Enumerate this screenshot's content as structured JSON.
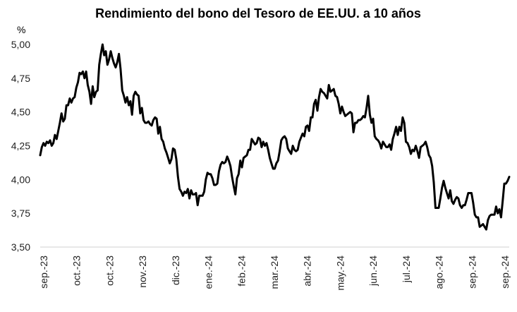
{
  "chart_data": {
    "type": "line",
    "title": "Rendimiento del bono del Tesoro de EE.UU. a 10 años",
    "ylabel": "%",
    "xlabel": "",
    "ylim": [
      3.5,
      5.0
    ],
    "y_ticks": [
      "5,00",
      "4,75",
      "4,50",
      "4,25",
      "4,00",
      "3,75",
      "3,50"
    ],
    "x_ticks": [
      "sep.-23",
      "oct.-23",
      "oct.-23",
      "nov.-23",
      "dic.-23",
      "ene.-24",
      "feb.-24",
      "mar.-24",
      "abr.-24",
      "may.-24",
      "jun.-24",
      "jul.-24",
      "ago.-24",
      "sep.-24",
      "sep.-24"
    ],
    "grid": false,
    "line_color": "#000000",
    "series": [
      {
        "values": [
          4.18,
          4.24,
          4.27,
          4.25,
          4.28,
          4.27,
          4.29,
          4.25,
          4.27,
          4.33,
          4.3,
          4.36,
          4.42,
          4.49,
          4.43,
          4.45,
          4.55,
          4.55,
          4.6,
          4.57,
          4.6,
          4.61,
          4.68,
          4.72,
          4.79,
          4.78,
          4.8,
          4.75,
          4.8,
          4.7,
          4.65,
          4.56,
          4.69,
          4.61,
          4.65,
          4.66,
          4.85,
          4.93,
          5.0,
          4.92,
          4.95,
          4.85,
          4.89,
          4.95,
          4.9,
          4.86,
          4.83,
          4.87,
          4.93,
          4.82,
          4.66,
          4.62,
          4.57,
          4.61,
          4.55,
          4.58,
          4.48,
          4.62,
          4.65,
          4.63,
          4.62,
          4.49,
          4.53,
          4.44,
          4.42,
          4.42,
          4.43,
          4.41,
          4.4,
          4.44,
          4.46,
          4.45,
          4.34,
          4.39,
          4.3,
          4.28,
          4.23,
          4.2,
          4.16,
          4.12,
          4.15,
          4.23,
          4.22,
          4.15,
          4.02,
          3.93,
          3.91,
          3.88,
          3.91,
          3.9,
          3.93,
          3.86,
          3.92,
          3.89,
          3.89,
          3.9,
          3.81,
          3.88,
          3.88,
          3.88,
          3.91,
          4.0,
          4.05,
          4.04,
          4.04,
          4.01,
          3.96,
          3.96,
          3.97,
          4.06,
          4.11,
          4.13,
          4.12,
          4.13,
          4.17,
          4.14,
          4.1,
          4.02,
          3.95,
          3.89,
          4.01,
          4.04,
          4.14,
          4.09,
          4.16,
          4.17,
          4.18,
          4.22,
          4.22,
          4.3,
          4.28,
          4.26,
          4.27,
          4.31,
          4.3,
          4.24,
          4.28,
          4.25,
          4.27,
          4.22,
          4.16,
          4.12,
          4.08,
          4.08,
          4.12,
          4.14,
          4.21,
          4.29,
          4.31,
          4.32,
          4.3,
          4.23,
          4.21,
          4.19,
          4.25,
          4.22,
          4.21,
          4.22,
          4.28,
          4.31,
          4.34,
          4.32,
          4.39,
          4.4,
          4.36,
          4.46,
          4.46,
          4.56,
          4.59,
          4.51,
          4.61,
          4.67,
          4.65,
          4.64,
          4.62,
          4.6,
          4.7,
          4.65,
          4.66,
          4.67,
          4.62,
          4.61,
          4.56,
          4.49,
          4.54,
          4.5,
          4.47,
          4.48,
          4.49,
          4.5,
          4.49,
          4.35,
          4.42,
          4.42,
          4.44,
          4.44,
          4.45,
          4.47,
          4.46,
          4.53,
          4.62,
          4.48,
          4.42,
          4.45,
          4.32,
          4.3,
          4.29,
          4.27,
          4.23,
          4.28,
          4.26,
          4.24,
          4.24,
          4.26,
          4.22,
          4.3,
          4.34,
          4.39,
          4.33,
          4.39,
          4.36,
          4.46,
          4.42,
          4.28,
          4.27,
          4.24,
          4.19,
          4.22,
          4.21,
          4.25,
          4.21,
          4.16,
          4.24,
          4.25,
          4.26,
          4.28,
          4.24,
          4.18,
          4.16,
          4.1,
          3.98,
          3.79,
          3.79,
          3.79,
          3.86,
          3.94,
          3.99,
          3.94,
          3.9,
          3.86,
          3.92,
          3.84,
          3.82,
          3.85,
          3.87,
          3.86,
          3.81,
          3.79,
          3.81,
          3.81,
          3.85,
          3.9,
          3.9,
          3.9,
          3.83,
          3.74,
          3.72,
          3.72,
          3.65,
          3.66,
          3.67,
          3.65,
          3.63,
          3.7,
          3.73,
          3.74,
          3.74,
          3.74,
          3.8,
          3.75,
          3.78,
          3.72,
          3.84,
          3.97,
          3.97,
          3.99,
          4.02
        ]
      }
    ]
  }
}
